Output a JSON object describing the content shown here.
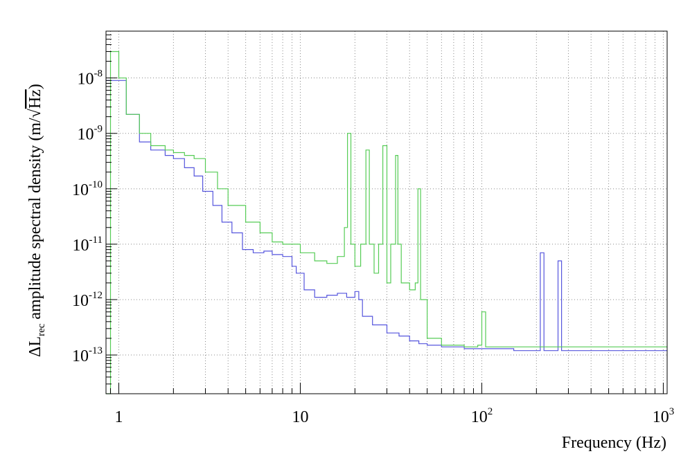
{
  "chart_data": {
    "type": "line",
    "title": "",
    "xlabel": "Frequency (Hz)",
    "ylabel": "ΔL_rec amplitude spectral density (m/√Hz)",
    "ylabel_parts": {
      "pre": "ΔL",
      "sub": "rec",
      "mid": " amplitude spectral density (m/",
      "sqrt": "√",
      "unit": "Hz",
      "post": ")"
    },
    "x_scale": "log",
    "y_scale": "log",
    "xlim": [
      0.85,
      1050
    ],
    "ylim": [
      2e-14,
      7e-08
    ],
    "grid": true,
    "x_ticks": [
      {
        "value": 1,
        "base": "1",
        "exp": ""
      },
      {
        "value": 10,
        "base": "10",
        "exp": ""
      },
      {
        "value": 100,
        "base": "10",
        "exp": "2"
      },
      {
        "value": 1000,
        "base": "10",
        "exp": "3"
      }
    ],
    "y_ticks": [
      {
        "value": 1e-13,
        "base": "10",
        "exp": "-13"
      },
      {
        "value": 1e-12,
        "base": "10",
        "exp": "-12"
      },
      {
        "value": 1e-11,
        "base": "10",
        "exp": "-11"
      },
      {
        "value": 1e-10,
        "base": "10",
        "exp": "-10"
      },
      {
        "value": 1e-09,
        "base": "10",
        "exp": "-9"
      },
      {
        "value": 1e-08,
        "base": "10",
        "exp": "-8"
      }
    ],
    "series": [
      {
        "color": "#5555dd",
        "x": [
          0.85,
          0.9,
          1.0,
          1.1,
          1.3,
          1.5,
          1.8,
          2.0,
          2.3,
          2.6,
          2.9,
          3.3,
          3.7,
          4.2,
          4.8,
          5.5,
          6.3,
          7.0,
          8.0,
          9.0,
          9.5,
          10.5,
          12.0,
          14.0,
          16.0,
          18.0,
          20.0,
          21.0,
          22.0,
          25.0,
          30.0,
          35.0,
          40.0,
          45.0,
          50.0,
          60.0,
          80.0,
          100.0,
          150.0,
          200.0,
          210.0,
          220.0,
          250.0,
          263.0,
          275.0,
          300.0,
          400.0,
          600.0,
          800.0,
          1050.0
        ],
        "y": [
          9e-09,
          9e-09,
          9e-09,
          2.2e-09,
          7e-10,
          5e-10,
          4e-10,
          3.5e-10,
          2.4e-10,
          1.7e-10,
          9e-11,
          5e-11,
          2.5e-11,
          1.6e-11,
          8e-12,
          7e-12,
          7.5e-12,
          6.5e-12,
          6e-12,
          4e-12,
          3e-12,
          1.5e-12,
          1.1e-12,
          1.2e-12,
          1.3e-12,
          1.1e-12,
          1.4e-12,
          1e-12,
          5e-13,
          3.5e-13,
          2.5e-13,
          2.2e-13,
          1.8e-13,
          1.6e-13,
          1.5e-13,
          1.4e-13,
          1.3e-13,
          1.3e-13,
          1.2e-13,
          1.2e-13,
          7e-12,
          1.2e-13,
          1.2e-13,
          5e-12,
          1.2e-13,
          1.2e-13,
          1.2e-13,
          1.2e-13,
          1.2e-13,
          1.2e-13
        ]
      },
      {
        "color": "#55cc55",
        "x": [
          0.85,
          0.9,
          1.0,
          1.1,
          1.3,
          1.5,
          1.8,
          2.0,
          2.3,
          2.6,
          3.0,
          3.5,
          4.0,
          5.0,
          6.0,
          7.0,
          8.0,
          10.0,
          12.0,
          14.0,
          16.0,
          17.5,
          18.2,
          19.0,
          20.0,
          21.5,
          23.0,
          24.0,
          25.5,
          27.0,
          28.5,
          30.0,
          31.5,
          33.5,
          34.5,
          36.0,
          40.0,
          43.0,
          44.5,
          46.0,
          50.0,
          60.0,
          80.0,
          95.0,
          100.0,
          105.0,
          150.0,
          200.0,
          250.0,
          300.0,
          400.0,
          600.0,
          800.0,
          1050.0
        ],
        "y": [
          2e-14,
          3e-08,
          1e-08,
          2.2e-09,
          1e-09,
          6e-10,
          5e-10,
          4.5e-10,
          4e-10,
          3.5e-10,
          2e-10,
          1e-10,
          5e-11,
          2.5e-11,
          1.6e-11,
          1.1e-11,
          1e-11,
          7e-12,
          5e-12,
          4.5e-12,
          6e-12,
          2e-11,
          1e-09,
          1e-11,
          4e-12,
          1e-11,
          5e-10,
          1e-11,
          3e-12,
          1e-11,
          6e-10,
          2e-12,
          1e-11,
          4e-10,
          1e-11,
          2e-12,
          1.5e-12,
          2e-12,
          1e-10,
          1e-12,
          2e-13,
          1.5e-13,
          1.4e-13,
          1.5e-13,
          6e-13,
          1.4e-13,
          1.4e-13,
          1.4e-13,
          1.4e-13,
          1.4e-13,
          1.4e-13,
          1.4e-13,
          1.4e-13,
          1.4e-13
        ]
      }
    ]
  }
}
